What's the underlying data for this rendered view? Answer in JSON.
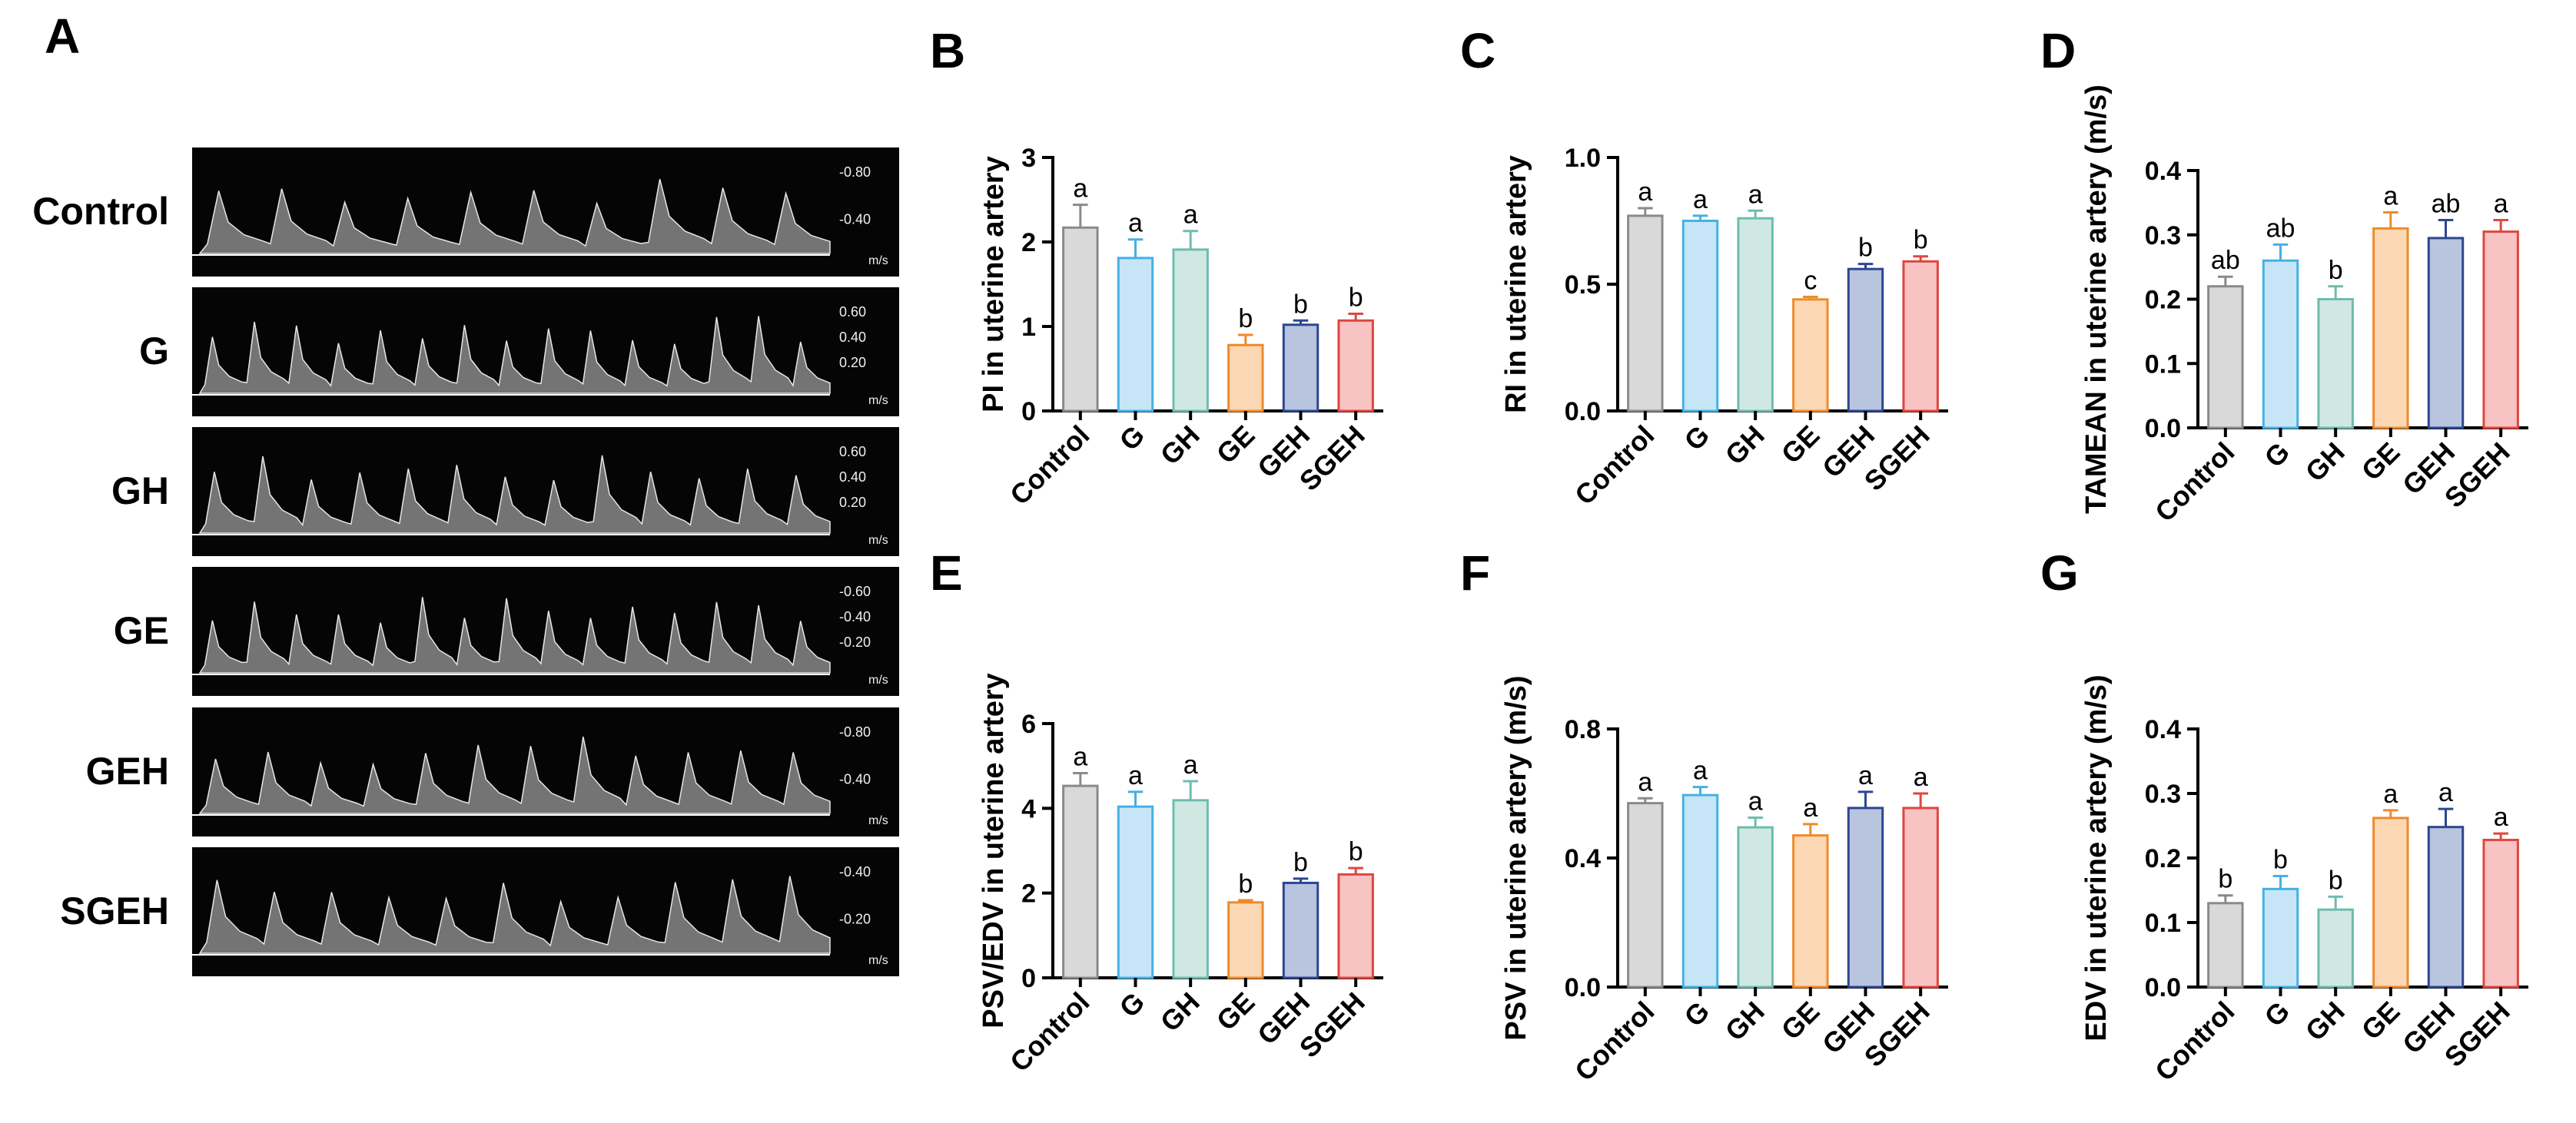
{
  "figure": {
    "panel_a_letter": "A",
    "ultrasound": [
      {
        "label": "Control",
        "scale": [
          "-0.80",
          "-0.40"
        ],
        "unit": "m/s"
      },
      {
        "label": "G",
        "scale": [
          "0.60",
          "0.40",
          "0.20"
        ],
        "unit": "m/s"
      },
      {
        "label": "GH",
        "scale": [
          "0.60",
          "0.40",
          "0.20"
        ],
        "unit": "m/s"
      },
      {
        "label": "GE",
        "scale": [
          "-0.60",
          "-0.40",
          "-0.20"
        ],
        "unit": "m/s"
      },
      {
        "label": "GEH",
        "scale": [
          "-0.80",
          "-0.40"
        ],
        "unit": "m/s"
      },
      {
        "label": "SGEH",
        "scale": [
          "-0.40",
          "-0.20"
        ],
        "unit": "m/s"
      }
    ]
  },
  "colors": {
    "fills": [
      "#d9d9d9",
      "#c6e6f7",
      "#cfe9e2",
      "#fbd7b3",
      "#b9c4df",
      "#f8c3c3"
    ],
    "strokes": [
      "#8a8a8a",
      "#45b1e4",
      "#6fbcae",
      "#ef8a2c",
      "#2c4691",
      "#e0463f"
    ]
  },
  "chart_data": [
    {
      "panel": "B",
      "type": "bar",
      "ylabel": "PI in uterine artery",
      "categories": [
        "Control",
        "G",
        "GH",
        "GE",
        "GEH",
        "SGEH"
      ],
      "values": [
        2.17,
        1.81,
        1.91,
        0.78,
        1.02,
        1.07
      ],
      "errors": [
        0.27,
        0.22,
        0.22,
        0.12,
        0.05,
        0.08
      ],
      "sig_letters": [
        "a",
        "a",
        "a",
        "b",
        "b",
        "b"
      ],
      "ylim": [
        0,
        3
      ],
      "yticks": [
        "0",
        "1",
        "2",
        "3"
      ]
    },
    {
      "panel": "C",
      "type": "bar",
      "ylabel": "RI in uterine artery",
      "categories": [
        "Control",
        "G",
        "GH",
        "GE",
        "GEH",
        "SGEH"
      ],
      "values": [
        0.77,
        0.75,
        0.76,
        0.44,
        0.56,
        0.59
      ],
      "errors": [
        0.03,
        0.02,
        0.03,
        0.01,
        0.02,
        0.02
      ],
      "sig_letters": [
        "a",
        "a",
        "a",
        "c",
        "b",
        "b"
      ],
      "ylim": [
        0,
        1
      ],
      "yticks": [
        "0.0",
        "0.5",
        "1.0"
      ]
    },
    {
      "panel": "D",
      "type": "bar",
      "ylabel": "TAMEAN in uterine artery (m/s)",
      "categories": [
        "Control",
        "G",
        "GH",
        "GE",
        "GEH",
        "SGEH"
      ],
      "values": [
        0.22,
        0.26,
        0.2,
        0.31,
        0.295,
        0.305
      ],
      "errors": [
        0.015,
        0.025,
        0.02,
        0.025,
        0.028,
        0.018
      ],
      "sig_letters": [
        "ab",
        "ab",
        "b",
        "a",
        "ab",
        "a"
      ],
      "ylim": [
        0,
        0.4
      ],
      "yticks": [
        "0.0",
        "0.1",
        "0.2",
        "0.3",
        "0.4"
      ]
    },
    {
      "panel": "E",
      "type": "bar",
      "ylabel": "PSV/EDV in uterine artery",
      "categories": [
        "Control",
        "G",
        "GH",
        "GE",
        "GEH",
        "SGEH"
      ],
      "values": [
        4.53,
        4.04,
        4.19,
        1.78,
        2.24,
        2.44
      ],
      "errors": [
        0.3,
        0.35,
        0.45,
        0.05,
        0.1,
        0.15
      ],
      "sig_letters": [
        "a",
        "a",
        "a",
        "b",
        "b",
        "b"
      ],
      "ylim": [
        0,
        6
      ],
      "yticks": [
        "0",
        "2",
        "4",
        "6"
      ]
    },
    {
      "panel": "F",
      "type": "bar",
      "ylabel": "PSV in uterine artery (m/s)",
      "categories": [
        "Control",
        "G",
        "GH",
        "GE",
        "GEH",
        "SGEH"
      ],
      "values": [
        0.57,
        0.595,
        0.495,
        0.47,
        0.555,
        0.555
      ],
      "errors": [
        0.015,
        0.025,
        0.03,
        0.035,
        0.05,
        0.045
      ],
      "sig_letters": [
        "a",
        "a",
        "a",
        "a",
        "a",
        "a"
      ],
      "ylim": [
        0,
        0.8
      ],
      "yticks": [
        "0.0",
        "0.4",
        "0.8"
      ]
    },
    {
      "panel": "G",
      "type": "bar",
      "ylabel": "EDV in uterine artery (m/s)",
      "categories": [
        "Control",
        "G",
        "GH",
        "GE",
        "GEH",
        "SGEH"
      ],
      "values": [
        0.13,
        0.152,
        0.12,
        0.262,
        0.248,
        0.228
      ],
      "errors": [
        0.012,
        0.02,
        0.02,
        0.012,
        0.028,
        0.01
      ],
      "sig_letters": [
        "b",
        "b",
        "b",
        "a",
        "a",
        "a"
      ],
      "ylim": [
        0,
        0.4
      ],
      "yticks": [
        "0.0",
        "0.1",
        "0.2",
        "0.3",
        "0.4"
      ]
    }
  ]
}
